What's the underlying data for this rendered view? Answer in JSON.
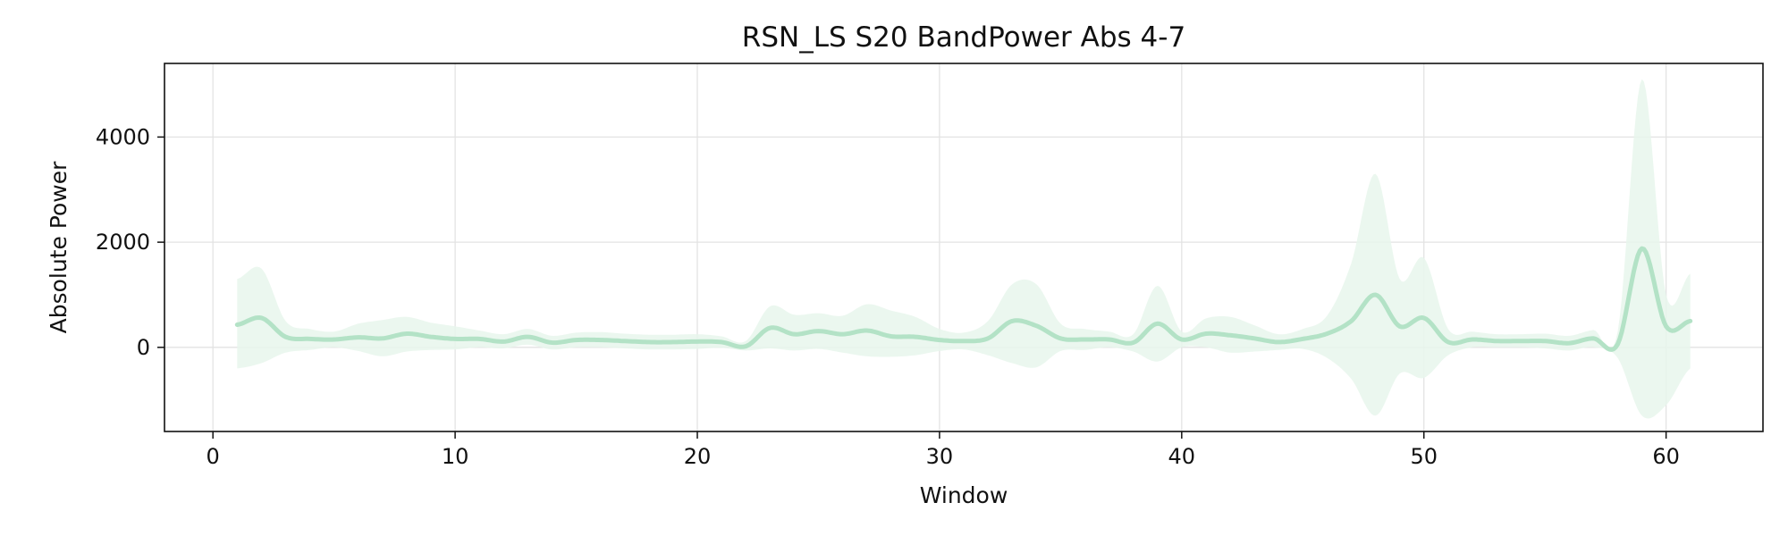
{
  "chart_data": {
    "type": "line",
    "title": "RSN_LS S20 BandPower Abs 4-7",
    "xlabel": "Window",
    "ylabel": "Absolute Power",
    "xlim": [
      -2,
      64
    ],
    "ylim": [
      -1600,
      5400
    ],
    "xticks": [
      0,
      10,
      20,
      30,
      40,
      50,
      60
    ],
    "yticks": [
      0,
      2000,
      4000
    ],
    "grid": true,
    "legend": "none",
    "colors": {
      "line": "#b3e2c6",
      "band": "#e8f6ec"
    },
    "series": [
      {
        "x": [
          1,
          2,
          3,
          4,
          5,
          6,
          7,
          8,
          9,
          10,
          11,
          12,
          13,
          14,
          15,
          16,
          17,
          18,
          19,
          20,
          21,
          22,
          23,
          24,
          25,
          26,
          27,
          28,
          29,
          30,
          31,
          32,
          33,
          34,
          35,
          36,
          37,
          38,
          39,
          40,
          41,
          42,
          43,
          44,
          45,
          46,
          47,
          48,
          49,
          50,
          51,
          52,
          53,
          54,
          55,
          56,
          57,
          58,
          59,
          60,
          61
        ],
        "mean": [
          430,
          560,
          200,
          160,
          150,
          190,
          170,
          260,
          200,
          160,
          160,
          110,
          200,
          90,
          140,
          140,
          120,
          100,
          100,
          110,
          100,
          20,
          370,
          250,
          310,
          250,
          320,
          210,
          200,
          140,
          120,
          170,
          500,
          410,
          170,
          150,
          150,
          90,
          450,
          150,
          260,
          230,
          170,
          100,
          160,
          260,
          500,
          1000,
          400,
          560,
          100,
          150,
          120,
          120,
          120,
          80,
          170,
          60,
          1880,
          400,
          500
        ],
        "upper": [
          1300,
          1500,
          500,
          350,
          300,
          450,
          520,
          580,
          470,
          400,
          320,
          250,
          350,
          220,
          280,
          290,
          260,
          240,
          240,
          250,
          210,
          120,
          780,
          620,
          650,
          600,
          820,
          700,
          580,
          350,
          280,
          500,
          1200,
          1200,
          450,
          350,
          300,
          250,
          1170,
          300,
          550,
          580,
          420,
          250,
          350,
          600,
          1600,
          3300,
          1300,
          1700,
          350,
          300,
          250,
          250,
          260,
          220,
          330,
          300,
          5100,
          1000,
          1400
        ],
        "lower": [
          -400,
          -300,
          -100,
          -50,
          0,
          -70,
          -170,
          -80,
          -50,
          -40,
          0,
          -20,
          50,
          -40,
          0,
          0,
          -20,
          -40,
          -40,
          -30,
          -10,
          -60,
          -20,
          -60,
          -30,
          -100,
          -170,
          -180,
          -150,
          -70,
          -40,
          -150,
          -300,
          -380,
          -70,
          -50,
          0,
          -80,
          -270,
          0,
          0,
          -100,
          -80,
          -50,
          -30,
          -200,
          -600,
          -1300,
          -500,
          -580,
          -150,
          0,
          0,
          0,
          -20,
          -60,
          0,
          -200,
          -1300,
          -1100,
          -400
        ]
      }
    ]
  }
}
